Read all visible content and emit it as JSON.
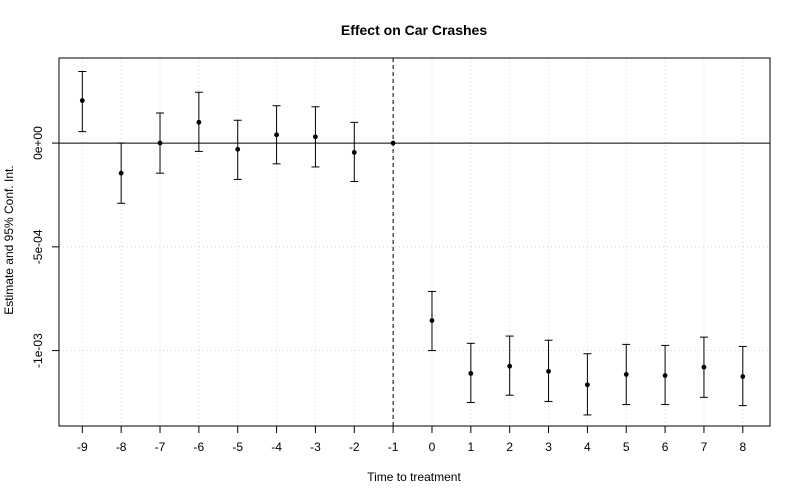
{
  "chart_data": {
    "type": "scatter",
    "title": "Effect on Car Crashes",
    "xlabel": "Time to treatment",
    "ylabel": "Estimate and 95% Conf. Int.",
    "xlim": [
      -9.6,
      8.7
    ],
    "ylim": [
      -0.0013633,
      0.00041
    ],
    "x_ticks": [
      -9,
      -8,
      -7,
      -6,
      -5,
      -4,
      -3,
      -2,
      -1,
      0,
      1,
      2,
      3,
      4,
      5,
      6,
      7,
      8
    ],
    "y_ticks": [
      {
        "value": 0,
        "label": "0e+00"
      },
      {
        "value": -0.0005,
        "label": "-5e-04"
      },
      {
        "value": -0.001,
        "label": "-1e-03"
      }
    ],
    "grid": "dotted, at tick positions",
    "reference_lines": {
      "horizontal_zero": true,
      "vertical_dashed_x": -1
    },
    "series": [
      {
        "points": [
          {
            "x": -9,
            "y": 0.000205,
            "lower": 5.5e-05,
            "upper": 0.000345
          },
          {
            "x": -8,
            "y": -0.000145,
            "lower": -0.00029,
            "upper": 0.0
          },
          {
            "x": -7,
            "y": 0.0,
            "lower": -0.000145,
            "upper": 0.000145
          },
          {
            "x": -6,
            "y": 0.0001,
            "lower": -4e-05,
            "upper": 0.000245
          },
          {
            "x": -5,
            "y": -3e-05,
            "lower": -0.000175,
            "upper": 0.00011
          },
          {
            "x": -4,
            "y": 4e-05,
            "lower": -0.0001,
            "upper": 0.00018
          },
          {
            "x": -3,
            "y": 3e-05,
            "lower": -0.000115,
            "upper": 0.000175
          },
          {
            "x": -2,
            "y": -4.5e-05,
            "lower": -0.000185,
            "upper": 0.0001
          },
          {
            "x": -1,
            "y": 0.0,
            "lower": 0.0,
            "upper": 0.0
          },
          {
            "x": 0,
            "y": -0.000855,
            "lower": -0.001,
            "upper": -0.000715
          },
          {
            "x": 1,
            "y": -0.00111,
            "lower": -0.00125,
            "upper": -0.000965
          },
          {
            "x": 2,
            "y": -0.001075,
            "lower": -0.001215,
            "upper": -0.00093
          },
          {
            "x": 3,
            "y": -0.0011,
            "lower": -0.001245,
            "upper": -0.00095
          },
          {
            "x": 4,
            "y": -0.001165,
            "lower": -0.00131,
            "upper": -0.001015
          },
          {
            "x": 5,
            "y": -0.001115,
            "lower": -0.00126,
            "upper": -0.00097
          },
          {
            "x": 6,
            "y": -0.00112,
            "lower": -0.00126,
            "upper": -0.000975
          },
          {
            "x": 7,
            "y": -0.00108,
            "lower": -0.001225,
            "upper": -0.000935
          },
          {
            "x": 8,
            "y": -0.001125,
            "lower": -0.001265,
            "upper": -0.00098
          }
        ]
      }
    ]
  }
}
